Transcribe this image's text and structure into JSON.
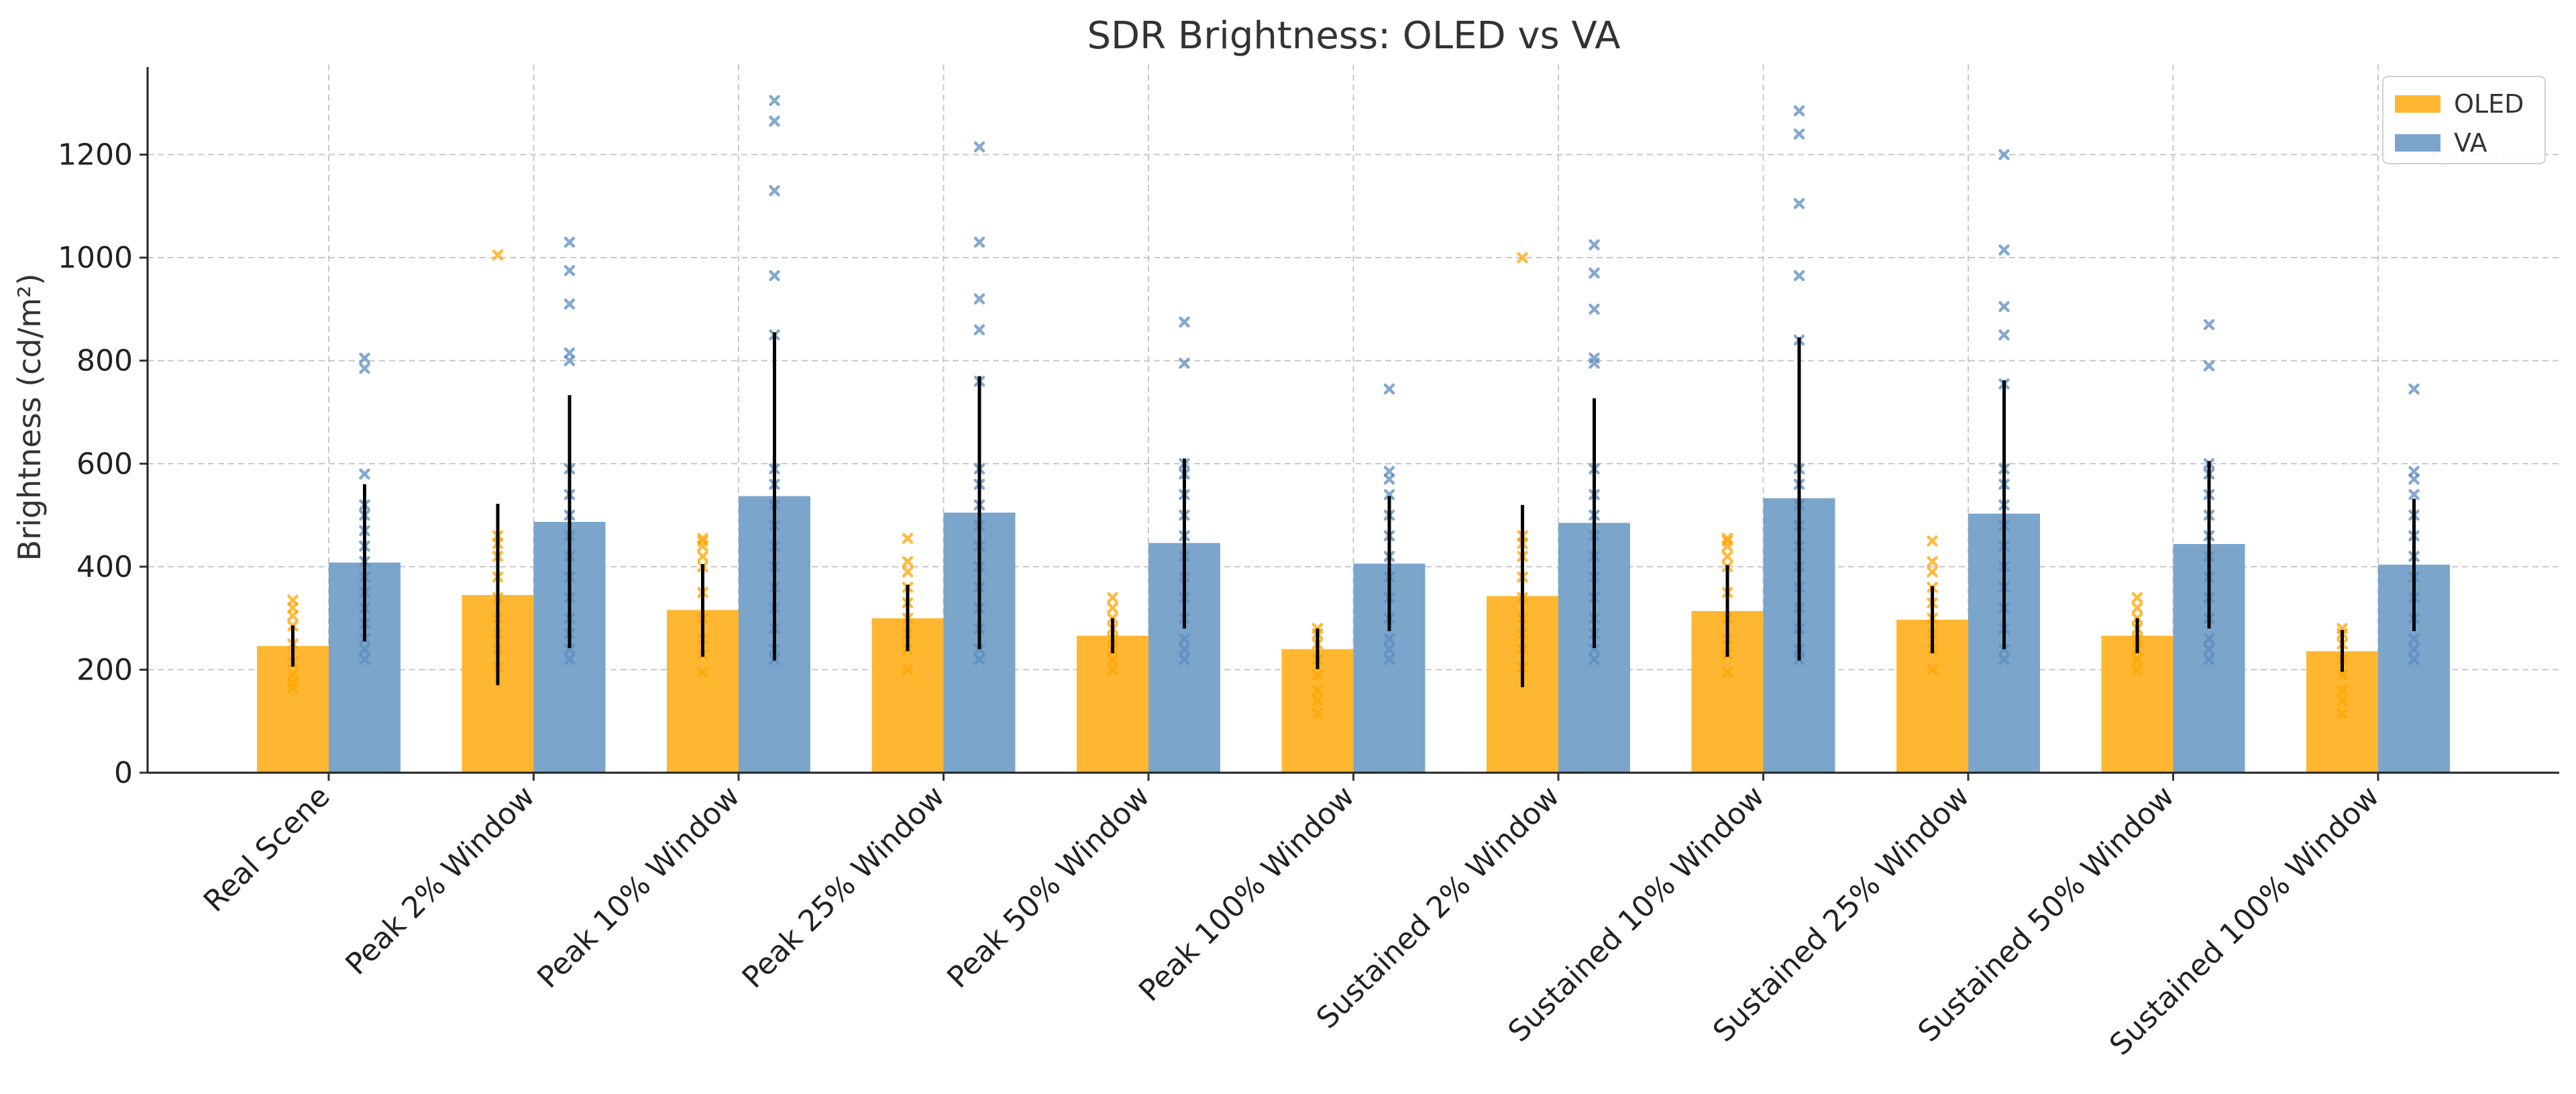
{
  "chart_data": {
    "type": "bar",
    "title": "SDR Brightness: OLED vs VA",
    "xlabel": "",
    "ylabel": "Brightness (cd/m²)",
    "ylim": [
      0,
      1370
    ],
    "yticks": [
      0,
      200,
      400,
      600,
      800,
      1000,
      1200
    ],
    "grid": true,
    "legend_position": "top-right",
    "categories": [
      "Real Scene",
      "Peak 2% Window",
      "Peak 10% Window",
      "Peak 25% Window",
      "Peak 50% Window",
      "Peak 100% Window",
      "Sustained 2% Window",
      "Sustained 10% Window",
      "Sustained 25% Window",
      "Sustained 50% Window",
      "Sustained 100% Window"
    ],
    "series": [
      {
        "name": "OLED",
        "color": "#FFB732",
        "marker_color": "#FFA500",
        "values": [
          246,
          345,
          316,
          300,
          266,
          240,
          343,
          314,
          297,
          266,
          236
        ],
        "error": [
          [
            206,
            286
          ],
          [
            170,
            522
          ],
          [
            225,
            405
          ],
          [
            236,
            365
          ],
          [
            232,
            300
          ],
          [
            201,
            280
          ],
          [
            166,
            520
          ],
          [
            225,
            403
          ],
          [
            232,
            362
          ],
          [
            232,
            300
          ],
          [
            196,
            277
          ]
        ],
        "points": [
          [
            165,
            175,
            190,
            215,
            250,
            285,
            305,
            320,
            335
          ],
          [
            205,
            240,
            270,
            300,
            340,
            380,
            420,
            445,
            460,
            1005
          ],
          [
            195,
            230,
            260,
            300,
            350,
            400,
            420,
            440,
            450,
            455
          ],
          [
            200,
            240,
            270,
            300,
            330,
            360,
            390,
            410,
            455
          ],
          [
            200,
            220,
            240,
            260,
            280,
            300,
            320,
            340
          ],
          [
            115,
            140,
            160,
            190,
            220,
            250,
            270,
            280
          ],
          [
            205,
            240,
            270,
            300,
            340,
            380,
            420,
            445,
            460,
            1000
          ],
          [
            195,
            230,
            260,
            300,
            350,
            400,
            420,
            440,
            450,
            455
          ],
          [
            200,
            240,
            270,
            300,
            330,
            360,
            390,
            410,
            450
          ],
          [
            200,
            220,
            240,
            260,
            280,
            300,
            320,
            340
          ],
          [
            115,
            140,
            160,
            190,
            220,
            250,
            270,
            280
          ]
        ]
      },
      {
        "name": "VA",
        "color": "#7BA5CB",
        "marker_color": "#5B8DBF",
        "values": [
          408,
          487,
          537,
          505,
          446,
          406,
          485,
          533,
          503,
          444,
          404
        ],
        "error": [
          [
            255,
            560
          ],
          [
            242,
            733
          ],
          [
            218,
            855
          ],
          [
            240,
            770
          ],
          [
            280,
            610
          ],
          [
            275,
            537
          ],
          [
            242,
            727
          ],
          [
            218,
            845
          ],
          [
            240,
            762
          ],
          [
            280,
            605
          ],
          [
            275,
            532
          ]
        ],
        "points": [
          [
            220,
            240,
            260,
            290,
            320,
            350,
            380,
            410,
            440,
            470,
            500,
            520,
            580,
            785,
            805
          ],
          [
            220,
            240,
            270,
            300,
            340,
            380,
            420,
            460,
            500,
            540,
            590,
            800,
            815,
            910,
            975,
            1030
          ],
          [
            220,
            240,
            280,
            320,
            360,
            400,
            440,
            480,
            520,
            560,
            590,
            850,
            965,
            1130,
            1265,
            1305
          ],
          [
            220,
            240,
            280,
            320,
            360,
            400,
            440,
            480,
            520,
            560,
            590,
            760,
            860,
            920,
            1030,
            1215
          ],
          [
            220,
            240,
            260,
            300,
            340,
            380,
            420,
            460,
            500,
            540,
            580,
            600,
            795,
            875
          ],
          [
            220,
            240,
            260,
            300,
            340,
            380,
            420,
            460,
            500,
            540,
            570,
            585,
            745
          ],
          [
            220,
            240,
            270,
            300,
            340,
            380,
            420,
            460,
            500,
            540,
            590,
            795,
            805,
            900,
            970,
            1025
          ],
          [
            220,
            240,
            280,
            320,
            360,
            400,
            440,
            480,
            520,
            560,
            590,
            840,
            965,
            1105,
            1240,
            1285
          ],
          [
            220,
            240,
            280,
            320,
            360,
            400,
            440,
            480,
            520,
            560,
            590,
            755,
            850,
            905,
            1015,
            1200
          ],
          [
            220,
            240,
            260,
            300,
            340,
            380,
            420,
            460,
            500,
            540,
            580,
            600,
            790,
            870
          ],
          [
            220,
            240,
            260,
            300,
            340,
            380,
            420,
            460,
            500,
            540,
            570,
            585,
            745
          ]
        ]
      }
    ]
  }
}
